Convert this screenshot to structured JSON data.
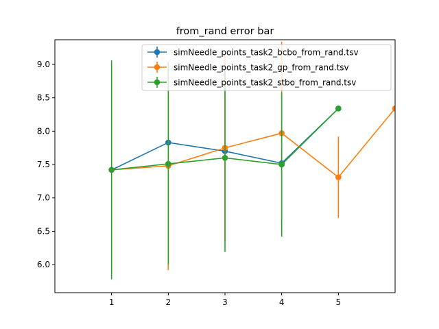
{
  "chart_data": {
    "type": "line",
    "title": "from_rand error bar",
    "xlabel": "",
    "ylabel": "",
    "xlim": [
      0,
      6
    ],
    "ylim": [
      5.58,
      9.37
    ],
    "xticks": [
      1,
      2,
      3,
      4,
      5
    ],
    "yticks": [
      6.0,
      6.5,
      7.0,
      7.5,
      8.0,
      8.5,
      9.0
    ],
    "xtick_labels": [
      "1",
      "2",
      "3",
      "4",
      "5"
    ],
    "ytick_labels": [
      "6.0",
      "6.5",
      "7.0",
      "7.5",
      "8.0",
      "8.5",
      "9.0"
    ],
    "grid": false,
    "legend_position": "top-right",
    "series": [
      {
        "name": "simNeedle_points_task2_bcbo_from_rand.tsv",
        "color": "#1f77b4",
        "x": [
          1,
          2,
          3,
          4,
          5
        ],
        "y": [
          7.42,
          7.83,
          7.7,
          7.52,
          8.34
        ],
        "err": [
          0,
          0,
          0,
          0,
          0
        ]
      },
      {
        "name": "simNeedle_points_task2_gp_from_rand.tsv",
        "color": "#ff7f0e",
        "x": [
          1,
          2,
          3,
          4,
          5,
          6
        ],
        "y": [
          7.42,
          7.48,
          7.75,
          7.97,
          7.31,
          8.34
        ],
        "err": [
          0,
          1.56,
          1.4,
          1.37,
          0.61,
          0
        ]
      },
      {
        "name": "simNeedle_points_task2_stbo_from_rand.tsv",
        "color": "#2ca02c",
        "x": [
          1,
          2,
          3,
          4,
          5
        ],
        "y": [
          7.42,
          7.51,
          7.6,
          7.5,
          8.34
        ],
        "err": [
          1.64,
          1.51,
          1.41,
          1.08,
          0
        ]
      }
    ]
  }
}
